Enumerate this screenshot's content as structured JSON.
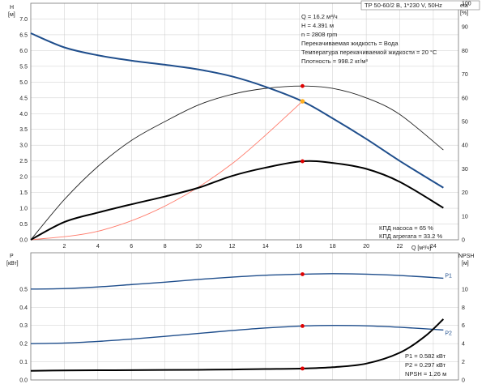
{
  "title": "TP 50-60/2 B, 1*230 V, 50Hz",
  "info_lines": [
    "Q = 16.2 м³/ч",
    "H = 4.391 м",
    "n = 2808 rpm",
    "Перекачиваемая жидкость = Вода",
    "Температура перекачиваемой жидкости = 20 °C",
    "Плотность = 998.2 кг/м³"
  ],
  "efficiency_lines": [
    "КПД насоса = 65 %",
    "КПД агрегата = 33.2 %"
  ],
  "power_lines": [
    "P1 = 0.582 кВт",
    "P2 = 0.297 кВт",
    "NPSH = 1.26 м"
  ],
  "colors": {
    "head": "#1f4e8c",
    "eta": "#000000",
    "system": "#ff7a6a",
    "point": "#e00000",
    "duty": "#ffb020",
    "grid": "#cccccc"
  },
  "chart_data": [
    {
      "type": "line",
      "xlabel": "Q [м³/ч]",
      "ylabel": "H [м]",
      "y2label": "eta [%]",
      "xlim": [
        0,
        25.5
      ],
      "ylim": [
        0,
        7.5
      ],
      "y2lim": [
        0,
        100
      ],
      "x_ticks": [
        2,
        4,
        6,
        8,
        10,
        12,
        14,
        16,
        18,
        20,
        22,
        24
      ],
      "y_ticks": [
        "0.0",
        "0.5",
        "1.0",
        "1.5",
        "2.0",
        "2.5",
        "3.0",
        "3.5",
        "4.0",
        "4.5",
        "5.0",
        "5.5",
        "6.0",
        "6.5",
        "7.0"
      ],
      "y2_ticks": [
        0,
        10,
        20,
        30,
        40,
        50,
        60,
        70,
        80,
        90,
        100
      ],
      "grid": true,
      "series": [
        {
          "role": "head",
          "x": [
            0,
            2,
            4,
            6,
            8,
            10,
            12,
            14,
            16.2,
            18,
            20,
            22,
            24.6
          ],
          "y": [
            6.55,
            6.1,
            5.85,
            5.68,
            5.55,
            5.4,
            5.18,
            4.85,
            4.39,
            3.85,
            3.2,
            2.5,
            1.65
          ]
        },
        {
          "role": "eta_pump",
          "axis": "y2",
          "x": [
            0,
            2,
            4,
            6,
            8,
            10,
            12,
            14,
            16.2,
            18,
            20,
            22,
            24.6
          ],
          "y": [
            0,
            17,
            31,
            42,
            50,
            57,
            61.5,
            64,
            65,
            64,
            60,
            53,
            38
          ]
        },
        {
          "role": "eta_unit",
          "axis": "y2",
          "x": [
            0,
            2,
            4,
            6,
            8,
            10,
            12,
            14,
            16.2,
            18,
            20,
            22,
            24.6
          ],
          "y": [
            0,
            7.5,
            11.5,
            15,
            18.3,
            22,
            27,
            30.5,
            33.2,
            32.5,
            30,
            24.5,
            13.5
          ]
        },
        {
          "role": "system",
          "x": [
            0,
            4,
            8,
            12,
            16.2
          ],
          "y": [
            0,
            0.27,
            1.07,
            2.41,
            4.39
          ]
        }
      ],
      "duty_point": {
        "x": 16.2,
        "y": 4.391,
        "eta_pump": 65,
        "eta_unit": 33.2
      }
    },
    {
      "type": "line",
      "xlabel": "",
      "ylabel": "P [кВт]",
      "y2label": "NPSH [м]",
      "xlim": [
        0,
        25.5
      ],
      "ylim": [
        0,
        0.7
      ],
      "y2lim": [
        0,
        14
      ],
      "y_ticks": [
        "0.0",
        "0.1",
        "0.2",
        "0.3",
        "0.4",
        "0.5"
      ],
      "y2_ticks": [
        0,
        2,
        4,
        6,
        8,
        10
      ],
      "grid": true,
      "series": [
        {
          "name": "P1",
          "x": [
            0,
            2,
            4,
            6,
            8,
            10,
            12,
            14,
            16.2,
            18,
            20,
            22,
            24.6
          ],
          "y": [
            0.5,
            0.503,
            0.512,
            0.525,
            0.538,
            0.553,
            0.566,
            0.576,
            0.582,
            0.585,
            0.582,
            0.575,
            0.56
          ]
        },
        {
          "name": "P2",
          "x": [
            0,
            2,
            4,
            6,
            8,
            10,
            12,
            14,
            16.2,
            18,
            20,
            22,
            24.6
          ],
          "y": [
            0.2,
            0.203,
            0.212,
            0.225,
            0.24,
            0.256,
            0.272,
            0.286,
            0.297,
            0.3,
            0.298,
            0.29,
            0.275
          ]
        },
        {
          "role": "npsh",
          "axis": "y2",
          "x": [
            0,
            2,
            4,
            6,
            8,
            10,
            12,
            14,
            16.2,
            18,
            20,
            22,
            23.5,
            24.6
          ],
          "y": [
            1.0,
            1.05,
            1.07,
            1.08,
            1.1,
            1.12,
            1.15,
            1.2,
            1.26,
            1.4,
            1.8,
            3.0,
            4.8,
            6.7
          ]
        }
      ],
      "duty_point": {
        "x": 16.2,
        "P1": 0.582,
        "P2": 0.297,
        "npsh": 1.26
      }
    }
  ]
}
